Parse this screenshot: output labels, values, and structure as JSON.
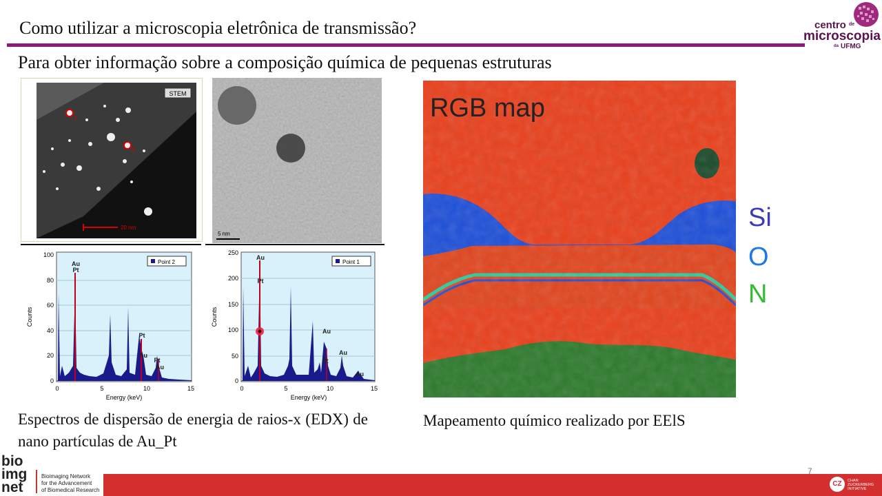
{
  "slide": {
    "title": "Como utilizar a microscopia eletrônica de transmissão?",
    "subtitle": "Para obter informação sobre a composição química de pequenas estruturas",
    "caption_left": "Espectros de dispersão de energia de raios-x (EDX) de nano partículas de Au_Pt",
    "caption_right": "Mapeamento químico realizado por EElS",
    "page_number": "7"
  },
  "logo": {
    "line1": "centro",
    "de": "de",
    "line2": "microscopia",
    "da": "da",
    "line3": "UFMG",
    "color": "#5a1450"
  },
  "stem_image": {
    "badge": "STEM",
    "scale_bar": "20 nm",
    "markers": [
      "1",
      "2"
    ]
  },
  "tem_image": {
    "scale_bar": "5 nm"
  },
  "edx_left": {
    "legend": "Point 2",
    "ylabel": "Counts",
    "xlabel": "Energy (keV)",
    "y_ticks": [
      "100",
      "80",
      "60",
      "40",
      "20",
      "0"
    ],
    "x_ticks": [
      "0",
      "5",
      "10",
      "15"
    ],
    "peaks": [
      "Au",
      "Pt",
      "Pt",
      "Au",
      "Pt",
      "Au"
    ]
  },
  "edx_right": {
    "legend": "Point 1",
    "ylabel": "Counts",
    "xlabel": "Energy (keV)",
    "y_ticks": [
      "250",
      "200",
      "150",
      "100",
      "50",
      "0"
    ],
    "x_ticks": [
      "0",
      "5",
      "10",
      "15"
    ],
    "peaks": [
      "Au",
      "Pt",
      "Au",
      "Pt",
      "Au",
      "Au"
    ]
  },
  "rgb_map": {
    "title": "RGB map",
    "elements": [
      "Si",
      "O",
      "N"
    ]
  },
  "footer": {
    "bio_logo": [
      "bio",
      "img",
      "net"
    ],
    "bio_desc": [
      "Bioimaging Network",
      "for the Advancement",
      "of Biomedical Research"
    ],
    "czi_badge": "CZ",
    "czi_text": [
      "CHAN",
      "ZUCKERBERG",
      "INITIATIVE"
    ]
  },
  "colors": {
    "accent": "#8b1a7a",
    "footer_red": "#d32f2f",
    "spectrum_blue": "#1a1a8c",
    "spectrum_red": "#c0001a"
  }
}
